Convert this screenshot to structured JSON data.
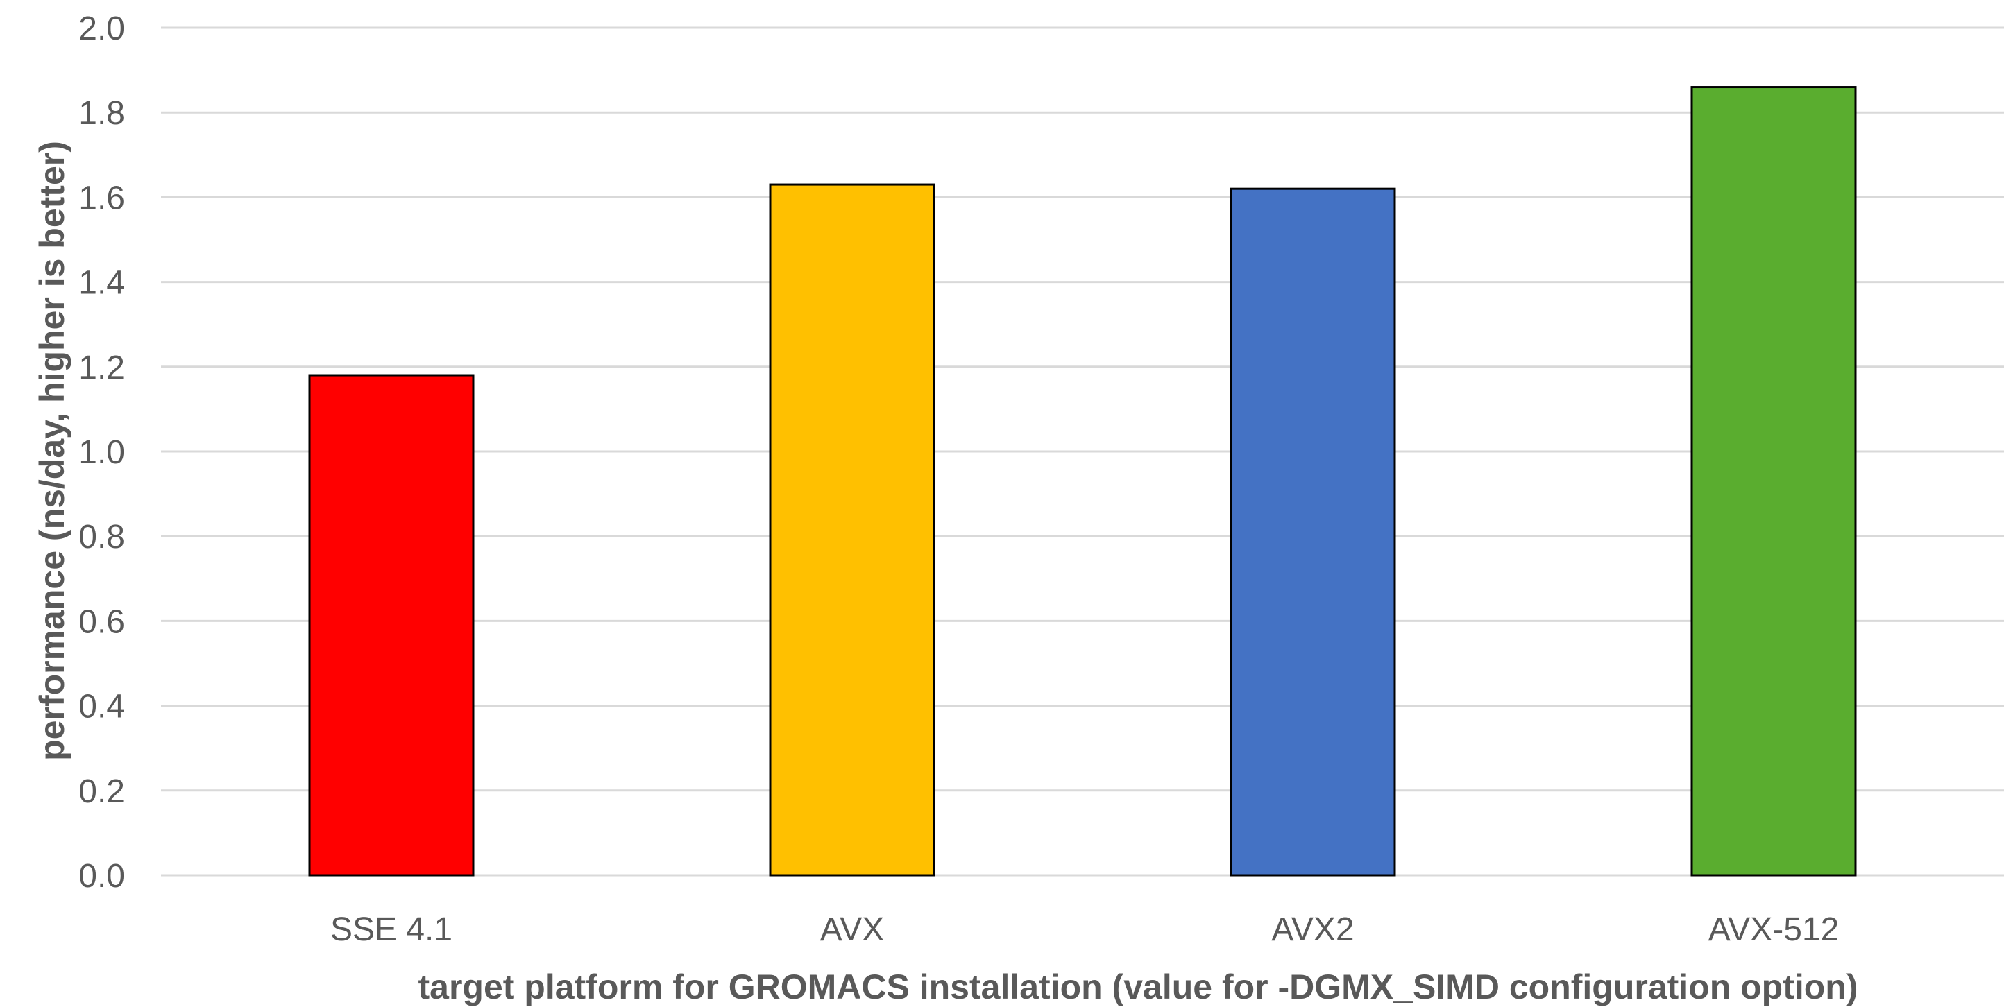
{
  "chart_data": {
    "type": "bar",
    "title": "",
    "xlabel": "target platform for GROMACS installation (value for -DGMX_SIMD configuration option)",
    "ylabel": "performance (ns/day, higher is better)",
    "categories": [
      "SSE 4.1",
      "AVX",
      "AVX2",
      "AVX-512"
    ],
    "values": [
      1.18,
      1.63,
      1.62,
      1.86
    ],
    "colors": [
      "#ff0000",
      "#ffc000",
      "#4472c4",
      "#5aad2f"
    ],
    "ylim": [
      0,
      2.0
    ],
    "yticks": [
      "0.0",
      "0.2",
      "0.4",
      "0.6",
      "0.8",
      "1.0",
      "1.2",
      "1.4",
      "1.6",
      "1.8",
      "2.0"
    ],
    "grid": true,
    "legend": "none"
  }
}
